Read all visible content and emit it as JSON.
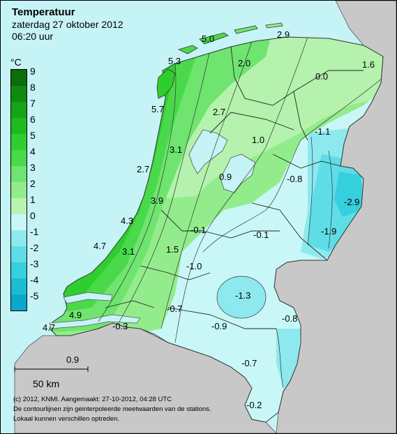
{
  "header": {
    "title": "Temperatuur",
    "date": "zaterdag 27 oktober 2012",
    "time": "06:20 uur"
  },
  "legend": {
    "unit": "°C",
    "entries": [
      {
        "label": "9",
        "color": "#0a6e0a"
      },
      {
        "label": "8",
        "color": "#0f8a0f"
      },
      {
        "label": "7",
        "color": "#17a317"
      },
      {
        "label": "6",
        "color": "#1fba1f"
      },
      {
        "label": "5",
        "color": "#2fce2f"
      },
      {
        "label": "4",
        "color": "#4ad94a"
      },
      {
        "label": "3",
        "color": "#6fe46f"
      },
      {
        "label": "2",
        "color": "#93ec8c"
      },
      {
        "label": "1",
        "color": "#b8f3b0"
      },
      {
        "label": "0",
        "color": "#c9f7f7"
      },
      {
        "label": "-1",
        "color": "#8ee9ee"
      },
      {
        "label": "-2",
        "color": "#5edde6"
      },
      {
        "label": "-3",
        "color": "#36cfdd"
      },
      {
        "label": "-4",
        "color": "#1bbdd4"
      },
      {
        "label": "-5",
        "color": "#0aa9cb"
      }
    ]
  },
  "scale_bar": {
    "label": "50 km"
  },
  "footer": {
    "credit": "(c) 2012, KNMI. Aangemaakt: 27-10-2012, 04:28 UTC",
    "note1": "De contourlijnen zijn geinterpoleerde meetwaarden van de stations.",
    "note2": "Lokaal kunnen verschillen optreden."
  },
  "stations": [
    {
      "label": "5.0"
    },
    {
      "label": "2.9"
    },
    {
      "label": "5.3"
    },
    {
      "label": "2.0"
    },
    {
      "label": "1.6"
    },
    {
      "label": "0.0"
    },
    {
      "label": "5.7"
    },
    {
      "label": "2.7"
    },
    {
      "label": "-1.1"
    },
    {
      "label": "1.0"
    },
    {
      "label": "3.1"
    },
    {
      "label": "2.7"
    },
    {
      "label": "0.9"
    },
    {
      "label": "-0.8"
    },
    {
      "label": "3.9"
    },
    {
      "label": "-2.9"
    },
    {
      "label": "4.3"
    },
    {
      "label": "-0.1"
    },
    {
      "label": "-0.1"
    },
    {
      "label": "-1.9"
    },
    {
      "label": "4.7"
    },
    {
      "label": "3.1"
    },
    {
      "label": "1.5"
    },
    {
      "label": "-1.0"
    },
    {
      "label": "-1.3"
    },
    {
      "label": "-0.7"
    },
    {
      "label": "4.9"
    },
    {
      "label": "-0.8"
    },
    {
      "label": "4.7"
    },
    {
      "label": "-0.3"
    },
    {
      "label": "-0.9"
    },
    {
      "label": "0.9"
    },
    {
      "label": "-0.7"
    },
    {
      "label": "-0.2"
    }
  ],
  "colors": {
    "sea": "#c6f3f6",
    "foreign_land": "#c8c8c8",
    "water": "#c6f3f6"
  }
}
